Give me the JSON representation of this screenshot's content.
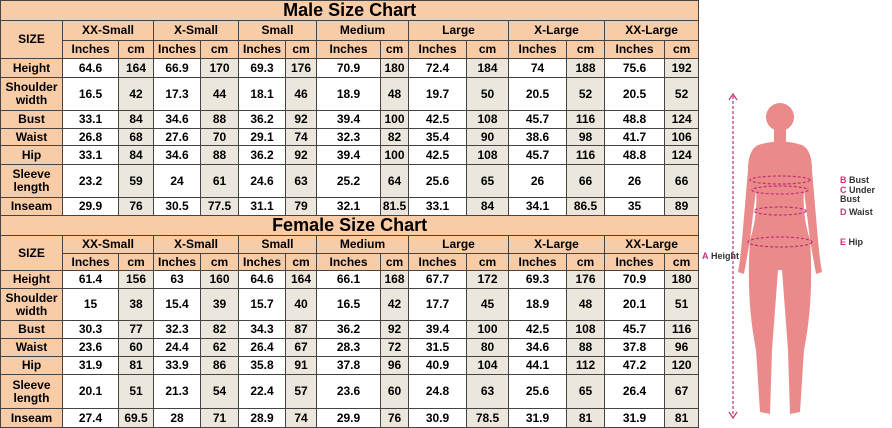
{
  "charts": [
    {
      "title": "Male Size Chart",
      "size_label": "SIZE",
      "sizes": [
        "XX-Small",
        "X-Small",
        "Small",
        "Medium",
        "Large",
        "X-Large",
        "XX-Large"
      ],
      "units": [
        "Inches",
        "cm"
      ],
      "rows": [
        {
          "label": "Height",
          "values": [
            64.6,
            164,
            66.9,
            170,
            69.3,
            176,
            70.9,
            180,
            72.4,
            184,
            74,
            188,
            75.6,
            192
          ]
        },
        {
          "label": "Shoulder width",
          "values": [
            16.5,
            42,
            17.3,
            44,
            18.1,
            46,
            18.9,
            48,
            19.7,
            50,
            20.5,
            52,
            20.5,
            52
          ]
        },
        {
          "label": "Bust",
          "values": [
            33.1,
            84,
            34.6,
            88,
            36.2,
            92,
            39.4,
            100,
            42.5,
            108,
            45.7,
            116,
            48.8,
            124
          ]
        },
        {
          "label": "Waist",
          "values": [
            26.8,
            68,
            27.6,
            70,
            29.1,
            74,
            32.3,
            82,
            35.4,
            90,
            38.6,
            98,
            41.7,
            106
          ]
        },
        {
          "label": "Hip",
          "values": [
            33.1,
            84,
            34.6,
            88,
            36.2,
            92,
            39.4,
            100,
            42.5,
            108,
            45.7,
            116,
            48.8,
            124
          ]
        },
        {
          "label": "Sleeve length",
          "values": [
            23.2,
            59,
            24,
            61,
            24.6,
            63,
            25.2,
            64,
            25.6,
            65,
            26,
            66,
            26,
            66
          ]
        },
        {
          "label": "Inseam",
          "values": [
            29.9,
            76,
            30.5,
            77.5,
            31.1,
            79,
            32.1,
            81.5,
            33.1,
            84,
            34.1,
            86.5,
            35,
            89
          ]
        }
      ]
    },
    {
      "title": "Female Size Chart",
      "size_label": "SIZE",
      "sizes": [
        "XX-Small",
        "X-Small",
        "Small",
        "Medium",
        "Large",
        "X-Large",
        "XX-Large"
      ],
      "units": [
        "Inches",
        "cm"
      ],
      "rows": [
        {
          "label": "Height",
          "values": [
            61.4,
            156,
            63,
            160,
            64.6,
            164,
            66.1,
            168,
            67.7,
            172,
            69.3,
            176,
            70.9,
            180
          ]
        },
        {
          "label": "Shoulder width",
          "values": [
            15,
            38,
            15.4,
            39,
            15.7,
            40,
            16.5,
            42,
            17.7,
            45,
            18.9,
            48,
            20.1,
            51
          ]
        },
        {
          "label": "Bust",
          "values": [
            30.3,
            77,
            32.3,
            82,
            34.3,
            87,
            36.2,
            92,
            39.4,
            100,
            42.5,
            108,
            45.7,
            116
          ]
        },
        {
          "label": "Waist",
          "values": [
            23.6,
            60,
            24.4,
            62,
            26.4,
            67,
            28.3,
            72,
            31.5,
            80,
            34.6,
            88,
            37.8,
            96
          ]
        },
        {
          "label": "Hip",
          "values": [
            31.9,
            81,
            33.9,
            86,
            35.8,
            91,
            37.8,
            96,
            40.9,
            104,
            44.1,
            112,
            47.2,
            120
          ]
        },
        {
          "label": "Sleeve length",
          "values": [
            20.1,
            51,
            21.3,
            54,
            22.4,
            57,
            23.6,
            60,
            24.8,
            63,
            25.6,
            65,
            26.4,
            67
          ]
        },
        {
          "label": "Inseam",
          "values": [
            27.4,
            69.5,
            28,
            71,
            28.9,
            74,
            29.9,
            76,
            30.9,
            78.5,
            31.9,
            81,
            31.9,
            81
          ]
        }
      ]
    }
  ],
  "figure": {
    "labels": [
      {
        "letter": "A",
        "text": "Height"
      },
      {
        "letter": "B",
        "text": "Bust"
      },
      {
        "letter": "C",
        "text": "Under Bust"
      },
      {
        "letter": "D",
        "text": "Waist"
      },
      {
        "letter": "E",
        "text": "Hip"
      }
    ]
  }
}
